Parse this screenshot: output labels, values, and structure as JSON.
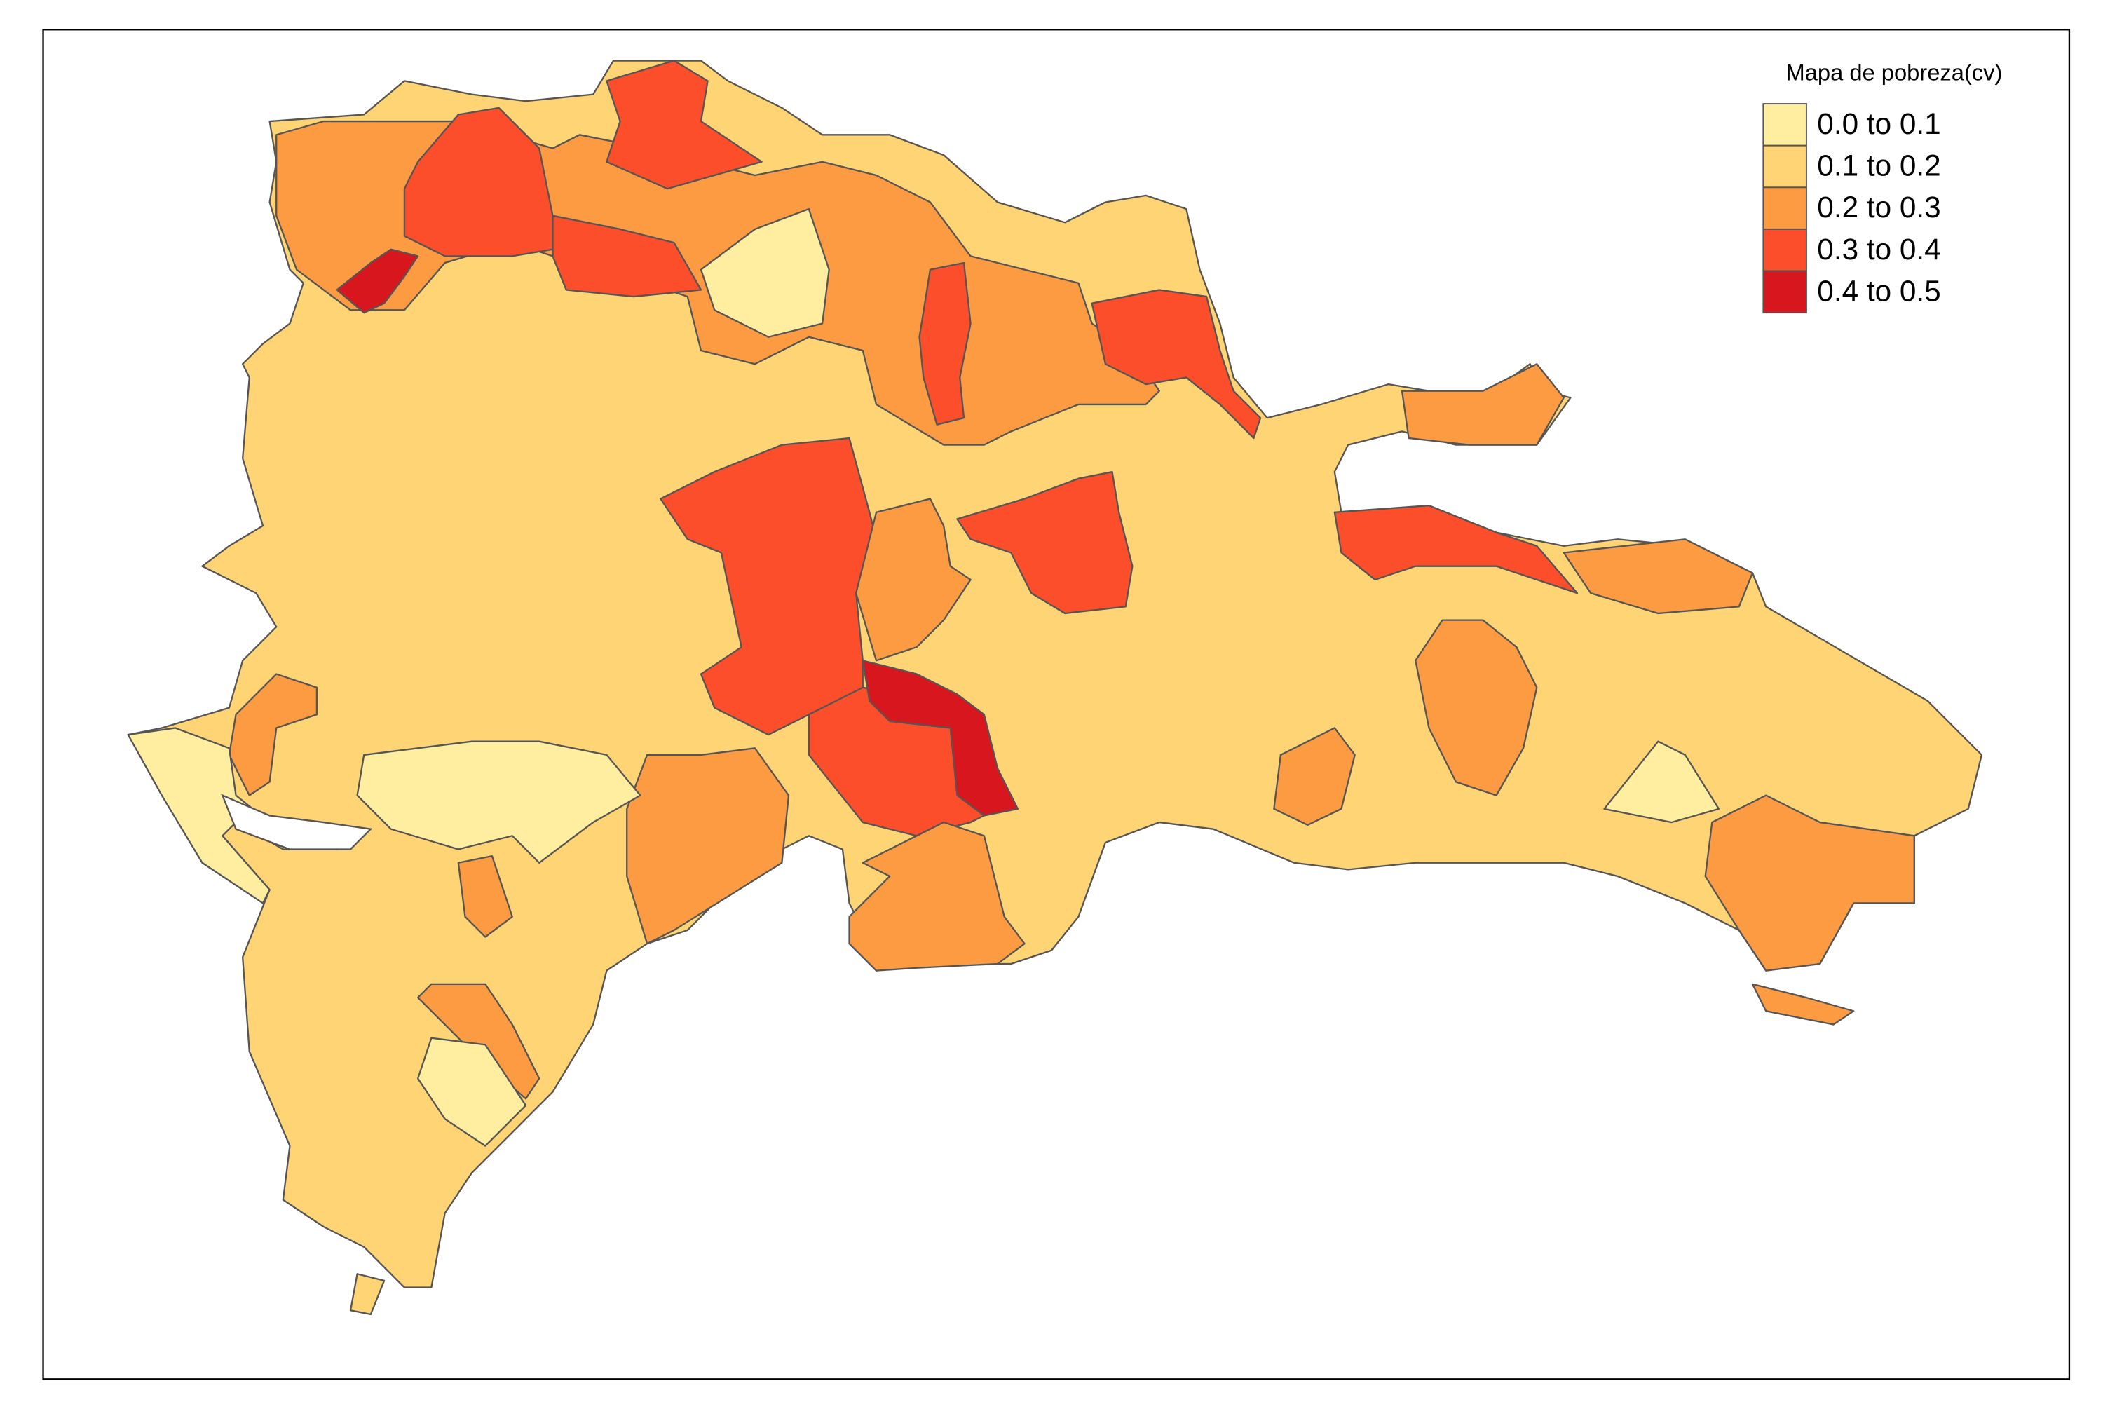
{
  "legend": {
    "title": "Mapa de pobreza(cv)",
    "items": [
      {
        "label": "0.0 to 0.1",
        "color": "#ffeda0"
      },
      {
        "label": "0.1 to 0.2",
        "color": "#fed474"
      },
      {
        "label": "0.2 to 0.3",
        "color": "#fd9b43"
      },
      {
        "label": "0.3 to 0.4",
        "color": "#fc4e2a"
      },
      {
        "label": "0.4 to 0.5",
        "color": "#d7161e"
      }
    ]
  }
}
